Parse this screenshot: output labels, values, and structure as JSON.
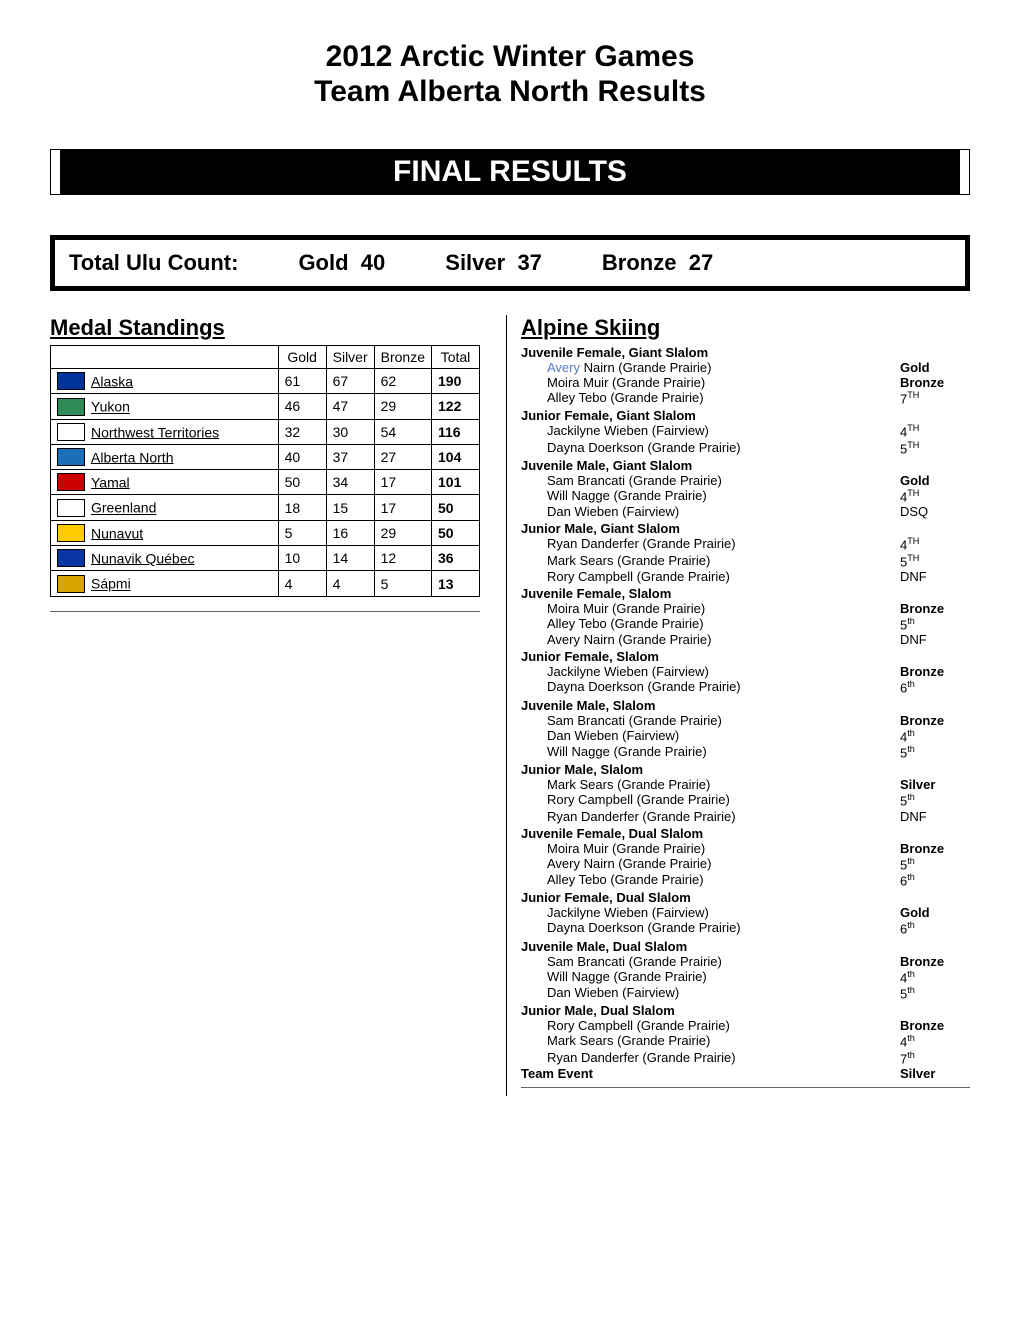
{
  "header": {
    "line1": "2012 Arctic Winter Games",
    "line2": "Team Alberta North Results",
    "final": "FINAL RESULTS"
  },
  "ulu": {
    "label": "Total Ulu Count:",
    "gold_label": "Gold",
    "gold": "40",
    "silver_label": "Silver",
    "silver": "37",
    "bronze_label": "Bronze",
    "bronze": "27"
  },
  "standings": {
    "title": "Medal Standings",
    "columns": [
      "Gold",
      "Silver",
      "Bronze",
      "Total"
    ],
    "rows": [
      {
        "team": "Alaska",
        "flag": "#003399",
        "g": "61",
        "s": "67",
        "b": "62",
        "t": "190"
      },
      {
        "team": "Yukon",
        "flag": "#2e8b57",
        "g": "46",
        "s": "47",
        "b": "29",
        "t": "122"
      },
      {
        "team": "Northwest Territories",
        "flag": "#ffffff",
        "g": "32",
        "s": "30",
        "b": "54",
        "t": "116"
      },
      {
        "team": "Alberta North",
        "flag": "#1b6fb8",
        "g": "40",
        "s": "37",
        "b": "27",
        "t": "104"
      },
      {
        "team": "Yamal",
        "flag": "#cc0000",
        "g": "50",
        "s": "34",
        "b": "17",
        "t": "101"
      },
      {
        "team": "Greenland",
        "flag": "#ffffff",
        "g": "18",
        "s": "15",
        "b": "17",
        "t": "50"
      },
      {
        "team": "Nunavut",
        "flag": "#ffcc00",
        "g": "5",
        "s": "16",
        "b": "29",
        "t": "50"
      },
      {
        "team": "Nunavik Québec",
        "flag": "#0a36a3",
        "g": "10",
        "s": "14",
        "b": "12",
        "t": "36"
      },
      {
        "team": "Sápmi",
        "flag": "#d9a400",
        "g": "4",
        "s": "4",
        "b": "5",
        "t": "13"
      }
    ]
  },
  "alpine": {
    "title": "Alpine Skiing",
    "categories": [
      {
        "name": "Juvenile Female, Giant Slalom",
        "athletes": [
          {
            "name": "Avery Nairn (Grande Prairie)",
            "place": "Gold",
            "bold": true,
            "colorName": true
          },
          {
            "name": "Moira Muir (Grande Prairie)",
            "place": "Bronze",
            "bold": true
          },
          {
            "name": "Alley Tebo (Grande Prairie)",
            "place": "7",
            "ord": "TH",
            "upper": true
          }
        ]
      },
      {
        "name": "Junior Female, Giant Slalom",
        "athletes": [
          {
            "name": "Jackilyne Wieben (Fairview)",
            "place": "4",
            "ord": "TH",
            "upper": true
          },
          {
            "name": "Dayna Doerkson (Grande Prairie)",
            "place": "5",
            "ord": "TH",
            "upper": true
          }
        ]
      },
      {
        "name": "Juvenile Male, Giant Slalom",
        "athletes": [
          {
            "name": "Sam Brancati (Grande Prairie)",
            "place": "Gold",
            "bold": true
          },
          {
            "name": "Will Nagge (Grande Prairie)",
            "place": "4",
            "ord": "TH",
            "upper": true
          },
          {
            "name": "Dan Wieben (Fairview)",
            "place": "DSQ"
          }
        ]
      },
      {
        "name": "Junior Male, Giant Slalom",
        "athletes": [
          {
            "name": "Ryan Danderfer (Grande Prairie)",
            "place": "4",
            "ord": "TH",
            "upper": true
          },
          {
            "name": "Mark Sears (Grande Prairie)",
            "place": "5",
            "ord": "TH",
            "upper": true
          },
          {
            "name": "Rory Campbell (Grande Prairie)",
            "place": "DNF"
          }
        ]
      },
      {
        "name": "Juvenile Female, Slalom",
        "athletes": [
          {
            "name": "Moira Muir (Grande Prairie)",
            "place": "Bronze",
            "bold": true
          },
          {
            "name": "Alley Tebo (Grande Prairie)",
            "place": "5",
            "ord": "th"
          },
          {
            "name": "Avery Nairn (Grande Prairie)",
            "place": "DNF"
          }
        ]
      },
      {
        "name": "Junior Female, Slalom",
        "athletes": [
          {
            "name": "Jackilyne Wieben (Fairview)",
            "place": "Bronze",
            "bold": true
          },
          {
            "name": "Dayna Doerkson (Grande Prairie)",
            "place": "6",
            "ord": "th"
          }
        ]
      },
      {
        "name": "Juvenile Male, Slalom",
        "athletes": [
          {
            "name": "Sam Brancati (Grande Prairie)",
            "place": "Bronze",
            "bold": true
          },
          {
            "name": "Dan Wieben (Fairview)",
            "place": "4",
            "ord": "th"
          },
          {
            "name": "Will Nagge (Grande Prairie)",
            "place": "5",
            "ord": "th"
          }
        ]
      },
      {
        "name": "Junior Male, Slalom",
        "athletes": [
          {
            "name": "Mark Sears (Grande Prairie)",
            "place": "Silver",
            "bold": true
          },
          {
            "name": "Rory Campbell (Grande Prairie)",
            "place": "5",
            "ord": "th"
          },
          {
            "name": "Ryan Danderfer (Grande Prairie)",
            "place": "DNF"
          }
        ]
      },
      {
        "name": "Juvenile Female, Dual Slalom",
        "athletes": [
          {
            "name": "Moira Muir (Grande Prairie)",
            "place": "Bronze",
            "bold": true
          },
          {
            "name": "Avery Nairn (Grande Prairie)",
            "place": "5",
            "ord": "th"
          },
          {
            "name": "Alley Tebo (Grande Prairie)",
            "place": "6",
            "ord": "th"
          }
        ]
      },
      {
        "name": "Junior Female, Dual Slalom",
        "athletes": [
          {
            "name": "Jackilyne Wieben (Fairview)",
            "place": "Gold",
            "bold": true
          },
          {
            "name": "Dayna Doerkson (Grande Prairie)",
            "place": "6",
            "ord": "th"
          }
        ]
      },
      {
        "name": "Juvenile Male, Dual Slalom",
        "athletes": [
          {
            "name": "Sam Brancati (Grande Prairie)",
            "place": "Bronze",
            "bold": true
          },
          {
            "name": "Will Nagge (Grande Prairie)",
            "place": "4",
            "ord": "th"
          },
          {
            "name": "Dan Wieben (Fairview)",
            "place": "5",
            "ord": "th"
          }
        ]
      },
      {
        "name": "Junior Male, Dual Slalom",
        "athletes": [
          {
            "name": "Rory Campbell (Grande Prairie)",
            "place": "Bronze",
            "bold": true
          },
          {
            "name": "Mark Sears (Grande Prairie)",
            "place": "4",
            "ord": "th"
          },
          {
            "name": "Ryan Danderfer (Grande Prairie)",
            "place": "7",
            "ord": "th"
          }
        ]
      },
      {
        "name": "Team Event",
        "teamRow": true,
        "place": "Silver",
        "bold": true
      }
    ]
  }
}
